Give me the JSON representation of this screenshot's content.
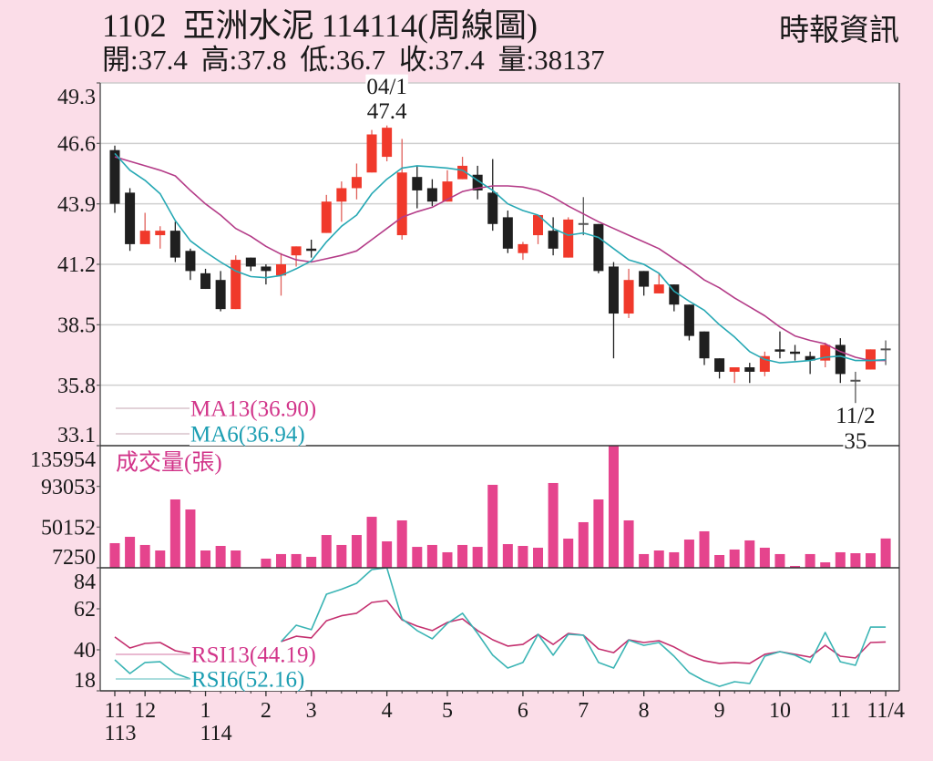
{
  "header": {
    "stock_code": "1102",
    "stock_name": "亞洲水泥",
    "date": "114114",
    "chart_type": "(周線圖)",
    "source": "時報資訊",
    "ohlc": [
      {
        "label": "開:",
        "value": "37.4"
      },
      {
        "label": "高:",
        "value": "37.8"
      },
      {
        "label": "低:",
        "value": "36.7"
      },
      {
        "label": "收:",
        "value": "37.4"
      },
      {
        "label": "量:",
        "value": "38137"
      }
    ]
  },
  "colors": {
    "background": "#fbdde8",
    "plot_bg": "#ffffff",
    "text": "#1a1a1a",
    "grid": "#cfcfcf",
    "frame": "#5a5a5a",
    "frame_dark": "#333333",
    "frame_light": "#cccccc",
    "up": "#f0392b",
    "up_wick": "#e0605a",
    "down": "#1f1f1f",
    "doji": "#555555",
    "legend_line": "#d9c4cc"
  },
  "chart_data": [
    {
      "type": "candlestick",
      "panel": "price",
      "title": "1102 亞洲水泥 114114(周線圖)",
      "ylim": [
        33.1,
        49.3
      ],
      "yticks": [
        49.3,
        46.6,
        43.9,
        41.2,
        38.5,
        35.8,
        33.1
      ],
      "ytick_labels": [
        "49.3",
        "46.6",
        "43.9",
        "41.2",
        "38.5",
        "35.8",
        "33.1"
      ],
      "grid": true,
      "ohlc_fields": [
        "open",
        "high",
        "low",
        "close"
      ],
      "ohlc": [
        [
          46.3,
          46.5,
          43.5,
          43.9
        ],
        [
          44.4,
          44.6,
          41.8,
          42.1
        ],
        [
          42.1,
          43.5,
          42.1,
          42.7
        ],
        [
          42.5,
          42.9,
          41.9,
          42.7
        ],
        [
          42.7,
          43.1,
          41.3,
          41.5
        ],
        [
          41.8,
          41.9,
          40.5,
          40.9
        ],
        [
          40.8,
          41.0,
          40.1,
          40.1
        ],
        [
          40.5,
          40.9,
          39.1,
          39.2
        ],
        [
          39.2,
          41.6,
          39.2,
          41.4
        ],
        [
          41.5,
          41.5,
          40.9,
          41.1
        ],
        [
          41.1,
          41.2,
          40.3,
          40.9
        ],
        [
          40.7,
          41.7,
          39.8,
          41.2
        ],
        [
          41.6,
          42.0,
          41.1,
          42.0
        ],
        [
          41.9,
          42.3,
          41.5,
          41.8
        ],
        [
          42.6,
          44.3,
          42.6,
          44.0
        ],
        [
          44.0,
          44.9,
          43.1,
          44.6
        ],
        [
          44.6,
          45.7,
          44.1,
          45.1
        ],
        [
          45.3,
          47.2,
          45.3,
          47.0
        ],
        [
          46.0,
          47.4,
          45.8,
          47.3
        ],
        [
          42.5,
          46.8,
          42.3,
          45.3
        ],
        [
          45.1,
          45.6,
          43.7,
          44.5
        ],
        [
          44.6,
          45.0,
          43.8,
          44.0
        ],
        [
          44.0,
          45.4,
          44.0,
          44.9
        ],
        [
          45.0,
          46.0,
          45.0,
          45.6
        ],
        [
          45.2,
          45.6,
          44.1,
          44.5
        ],
        [
          44.4,
          45.9,
          42.7,
          43.0
        ],
        [
          43.3,
          43.6,
          41.7,
          41.9
        ],
        [
          41.7,
          42.2,
          41.4,
          42.1
        ],
        [
          42.5,
          43.4,
          42.1,
          43.4
        ],
        [
          42.7,
          43.3,
          41.6,
          41.9
        ],
        [
          41.5,
          43.3,
          41.5,
          43.2
        ],
        [
          43.0,
          44.2,
          42.5,
          43.0
        ],
        [
          43.0,
          43.0,
          40.8,
          40.9
        ],
        [
          41.1,
          41.3,
          37.0,
          39.0
        ],
        [
          39.0,
          41.0,
          38.8,
          40.5
        ],
        [
          40.9,
          40.9,
          39.8,
          40.2
        ],
        [
          39.9,
          40.8,
          39.9,
          40.3
        ],
        [
          40.3,
          40.3,
          39.1,
          39.4
        ],
        [
          39.4,
          39.4,
          37.8,
          38.0
        ],
        [
          38.2,
          38.2,
          36.7,
          37.0
        ],
        [
          37.0,
          37.0,
          36.1,
          36.4
        ],
        [
          36.4,
          36.6,
          35.9,
          36.6
        ],
        [
          36.6,
          36.8,
          35.9,
          36.4
        ],
        [
          36.4,
          37.3,
          36.2,
          37.1
        ],
        [
          37.4,
          38.2,
          37.0,
          37.3
        ],
        [
          37.3,
          37.6,
          36.9,
          37.2
        ],
        [
          37.1,
          37.3,
          36.3,
          36.9
        ],
        [
          36.9,
          37.7,
          36.6,
          37.6
        ],
        [
          37.6,
          37.9,
          35.9,
          36.3
        ],
        [
          36.0,
          36.4,
          35.0,
          36.0
        ],
        [
          36.5,
          37.4,
          36.5,
          37.4
        ],
        [
          37.4,
          37.8,
          36.7,
          37.4
        ]
      ],
      "series": [
        {
          "name": "MA13",
          "legend_label": "MA13(36.90)",
          "type": "line",
          "color": "#b43c88",
          "legend_color": "#d2358a",
          "values": [
            46.0,
            45.8,
            45.6,
            45.4,
            45.15,
            44.5,
            43.9,
            43.4,
            42.8,
            42.45,
            42.0,
            41.65,
            41.4,
            41.3,
            41.45,
            41.6,
            41.8,
            42.3,
            42.8,
            43.3,
            43.55,
            43.75,
            44.1,
            44.45,
            44.6,
            44.7,
            44.7,
            44.65,
            44.5,
            44.2,
            43.8,
            43.45,
            43.1,
            42.8,
            42.5,
            42.2,
            41.9,
            41.45,
            41.0,
            40.5,
            40.15,
            39.7,
            39.3,
            38.9,
            38.4,
            38.0,
            37.8,
            37.65,
            37.3,
            37.05,
            36.9,
            36.9
          ]
        },
        {
          "name": "MA6",
          "legend_label": "MA6(36.94)",
          "type": "line",
          "color": "#26a8b4",
          "legend_color": "#1c9eb2",
          "values": [
            46.15,
            45.4,
            44.95,
            44.35,
            43.15,
            42.25,
            41.75,
            41.3,
            40.9,
            40.65,
            40.6,
            40.7,
            41.0,
            41.35,
            42.2,
            42.9,
            43.4,
            44.35,
            45.0,
            45.5,
            45.6,
            45.55,
            45.5,
            45.4,
            44.95,
            44.5,
            43.9,
            43.6,
            43.4,
            42.8,
            42.5,
            42.6,
            42.4,
            41.9,
            41.4,
            41.2,
            40.8,
            40.0,
            39.55,
            39.15,
            38.5,
            37.95,
            37.3,
            36.95,
            36.8,
            36.85,
            36.9,
            37.05,
            37.1,
            36.9,
            36.9,
            36.94
          ]
        }
      ],
      "annotations": [
        {
          "index": 18,
          "lines": [
            "04/1",
            "47.4"
          ],
          "position": "above"
        },
        {
          "index": 49,
          "lines": [
            "11/2",
            "35"
          ],
          "position": "below"
        }
      ]
    },
    {
      "type": "bar",
      "panel": "volume",
      "title": "成交量(張)",
      "title_color": "#d2358a",
      "color": "#e5448d",
      "ylim": [
        7250,
        135954
      ],
      "yticks": [
        135954,
        93053,
        50152,
        7250
      ],
      "ytick_labels": [
        "135954",
        "93053",
        "50152",
        "7250"
      ],
      "values": [
        33200,
        39900,
        31300,
        25500,
        79300,
        68700,
        25500,
        30300,
        25500,
        7250,
        16900,
        21700,
        21700,
        18800,
        41800,
        31300,
        41800,
        61000,
        35100,
        57200,
        29300,
        31300,
        23600,
        31300,
        29300,
        94700,
        32200,
        30300,
        28400,
        96600,
        38000,
        55300,
        79300,
        135954,
        57200,
        21700,
        25500,
        23600,
        37000,
        45700,
        20700,
        26500,
        36100,
        28400,
        21700,
        9200,
        21700,
        13000,
        23600,
        22600,
        22600,
        38137
      ]
    },
    {
      "type": "line",
      "panel": "rsi",
      "ylim": [
        18,
        84
      ],
      "yticks": [
        84,
        62,
        40,
        18
      ],
      "ytick_labels": [
        "84",
        "62",
        "40",
        "18"
      ],
      "series": [
        {
          "name": "RSI13",
          "legend_label": "RSI13(44.19)",
          "color": "#c4306f",
          "legend_color": "#d2358a",
          "legend_line_color": "#e2a4c2",
          "values": [
            46.9,
            41.0,
            43.4,
            43.9,
            39.5,
            38.0,
            null,
            null,
            null,
            null,
            null,
            44.4,
            47.3,
            46.4,
            55.6,
            58.3,
            59.6,
            65.4,
            66.4,
            56.1,
            52.7,
            50.3,
            54.7,
            56.6,
            50.3,
            45.4,
            42.0,
            42.9,
            48.3,
            42.9,
            48.8,
            47.8,
            40.5,
            38.5,
            45.4,
            43.9,
            44.9,
            41.5,
            37.1,
            34.1,
            32.7,
            33.2,
            32.7,
            37.6,
            39.0,
            37.6,
            36.1,
            42.4,
            36.6,
            35.6,
            43.9,
            44.19
          ]
        },
        {
          "name": "RSI6",
          "legend_label": "RSI6(52.16)",
          "color": "#3ab4b4",
          "legend_color": "#1c9eb2",
          "legend_line_color": "#8fd2d2",
          "values": [
            34.6,
            27.3,
            33.2,
            33.6,
            27.3,
            24.4,
            null,
            null,
            null,
            null,
            null,
            44.4,
            53.2,
            50.8,
            69.8,
            72.5,
            75.7,
            83.0,
            84.0,
            56.6,
            50.3,
            45.9,
            54.2,
            59.6,
            48.8,
            37.1,
            30.2,
            33.2,
            48.3,
            37.1,
            48.3,
            47.8,
            33.2,
            30.2,
            45.2,
            42.4,
            43.9,
            36.6,
            27.8,
            23.4,
            20.4,
            22.9,
            21.9,
            36.6,
            39.0,
            37.1,
            33.2,
            49.3,
            33.6,
            31.7,
            52.2,
            52.16
          ]
        }
      ],
      "x_ticks": [
        {
          "label": "11",
          "sublabel": "113",
          "index": 0
        },
        {
          "label": "12",
          "index": 2
        },
        {
          "label": "1",
          "sublabel": "114",
          "index": 6
        },
        {
          "label": "2",
          "index": 10
        },
        {
          "label": "3",
          "index": 13
        },
        {
          "label": "4",
          "index": 18
        },
        {
          "label": "5",
          "index": 22
        },
        {
          "label": "6",
          "index": 27
        },
        {
          "label": "7",
          "index": 31
        },
        {
          "label": "8",
          "index": 35
        },
        {
          "label": "9",
          "index": 40
        },
        {
          "label": "10",
          "index": 44
        },
        {
          "label": "11",
          "index": 48
        },
        {
          "label": "11/4",
          "index": 51
        }
      ]
    }
  ]
}
